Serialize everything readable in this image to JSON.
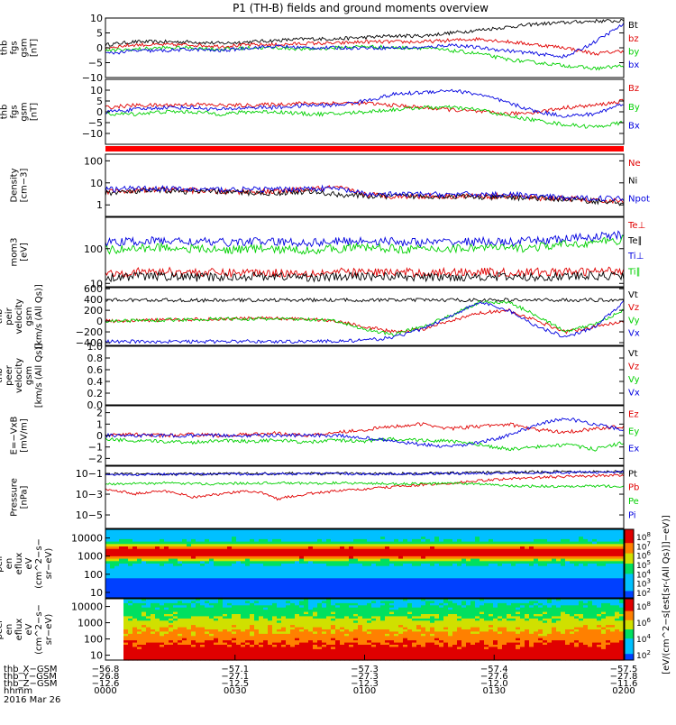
{
  "title": "P1 (TH-B) fields and ground moments overview",
  "colors": {
    "black": "#000000",
    "red": "#e00000",
    "green": "#00d000",
    "blue": "#0000e0",
    "bar_red": "#ff0000"
  },
  "chart_data": [
    {
      "type": "line",
      "panel": "fgs_gsm",
      "ylabel": [
        "thb",
        "fgs",
        "gsm",
        "[nT]"
      ],
      "ylim": [
        -10,
        10
      ],
      "ticks": [
        "10",
        "5",
        "0",
        "−5",
        "−10"
      ],
      "legend": [
        "Bt",
        "bz",
        "by",
        "bx"
      ],
      "series": [
        {
          "name": "Bt",
          "color": "black",
          "values": [
            1,
            2,
            2,
            2,
            1.5,
            2,
            2.5,
            3,
            3,
            3.5,
            4,
            4,
            5,
            6,
            7,
            8,
            8.5,
            9,
            9
          ]
        },
        {
          "name": "bz",
          "color": "red",
          "values": [
            0,
            1,
            1,
            1,
            0.5,
            1,
            1,
            1.5,
            1.5,
            2,
            2,
            2,
            2.5,
            3,
            2,
            1,
            0,
            -2,
            -1
          ]
        },
        {
          "name": "by",
          "color": "green",
          "values": [
            -1,
            -0.5,
            0,
            0,
            -0.5,
            0,
            0,
            -0.5,
            0,
            0.5,
            0,
            0,
            -1,
            -2,
            -4,
            -5,
            -6,
            -7,
            -6
          ]
        },
        {
          "name": "bx",
          "color": "blue",
          "values": [
            -2,
            -1,
            -1,
            -0.5,
            -1,
            0,
            0.5,
            0,
            0,
            0,
            0,
            0,
            1,
            0,
            -1,
            -2,
            -3,
            2,
            8
          ]
        }
      ]
    },
    {
      "type": "line",
      "panel": "fgs_gsm_B",
      "ylabel": [
        "thb",
        "fgs",
        "gsm",
        "[nT]"
      ],
      "ylim": [
        -15,
        15
      ],
      "ticks": [
        "10",
        "5",
        "0",
        "−5",
        "−10"
      ],
      "legend": [
        "Bz",
        "By",
        "Bx"
      ],
      "series": [
        {
          "name": "Bz",
          "color": "red",
          "values": [
            2,
            3,
            3,
            3.5,
            3,
            3,
            3.5,
            4,
            4,
            4,
            3,
            2,
            1,
            0,
            -1,
            0,
            2,
            3,
            5
          ]
        },
        {
          "name": "By",
          "color": "green",
          "values": [
            -1,
            -1,
            0,
            0,
            -1,
            0,
            0,
            -1,
            -1,
            0,
            1,
            2,
            2,
            1,
            -2,
            -4,
            -6,
            -7,
            -5
          ]
        },
        {
          "name": "Bx",
          "color": "blue",
          "values": [
            0,
            1,
            2,
            2,
            1,
            2,
            2,
            3,
            3,
            5,
            8,
            9,
            10,
            8,
            4,
            0,
            -2,
            -1,
            4
          ]
        }
      ]
    },
    {
      "type": "line",
      "panel": "density",
      "log": true,
      "ylabel": [
        "Density",
        "[cm−3]"
      ],
      "ylim": [
        0.3,
        200
      ],
      "ticks": [
        "100",
        "10",
        "1"
      ],
      "legend": [
        "Ne",
        "Ni",
        "Npot"
      ],
      "series": [
        {
          "name": "Ne",
          "color": "red",
          "values": [
            4,
            4.5,
            5,
            4.5,
            4,
            4,
            4,
            5,
            6,
            3,
            2.5,
            2.5,
            2.5,
            2.5,
            2.5,
            2,
            2,
            1.5,
            1.5
          ]
        },
        {
          "name": "Ni",
          "color": "black",
          "values": [
            3.5,
            4,
            4.5,
            4,
            4,
            3.5,
            3.5,
            4,
            3,
            2.5,
            2.5,
            2.5,
            2.5,
            2.2,
            2.2,
            2,
            1.8,
            1.5,
            1.2
          ]
        },
        {
          "name": "Npot",
          "color": "blue",
          "values": [
            5,
            5.5,
            5.5,
            5,
            5,
            5,
            5,
            5.5,
            5.5,
            3,
            3,
            3,
            3,
            3,
            3,
            2.5,
            2,
            2,
            2
          ]
        }
      ]
    },
    {
      "type": "line",
      "panel": "temperature",
      "log": true,
      "ylabel": [
        "mom3",
        "[eV]"
      ],
      "ylim": [
        8,
        800
      ],
      "ticks": [
        "100",
        "10"
      ],
      "legend": [
        "Te⊥",
        "Te∥",
        "Ti⊥",
        "Ti∥"
      ],
      "series": [
        {
          "name": "Te⊥",
          "color": "red",
          "values": [
            20,
            21,
            22,
            21,
            20,
            21,
            20,
            20,
            21,
            21,
            21,
            20,
            21,
            22,
            20,
            21,
            21,
            22,
            24
          ]
        },
        {
          "name": "Te∥",
          "color": "black",
          "values": [
            15,
            16,
            16,
            15,
            15,
            16,
            16,
            15,
            15,
            16,
            16,
            15,
            15,
            16,
            15,
            15,
            16,
            16,
            17
          ]
        },
        {
          "name": "Ti⊥",
          "color": "blue",
          "values": [
            150,
            160,
            170,
            160,
            150,
            160,
            155,
            150,
            160,
            170,
            160,
            150,
            155,
            160,
            150,
            170,
            190,
            220,
            250
          ]
        },
        {
          "name": "Ti∥",
          "color": "green",
          "values": [
            90,
            100,
            110,
            100,
            90,
            100,
            95,
            90,
            100,
            110,
            100,
            95,
            100,
            110,
            100,
            110,
            130,
            150,
            180
          ]
        }
      ]
    },
    {
      "type": "line",
      "panel": "ion_velocity",
      "ylabel": [
        "thb",
        "peir",
        "velocity",
        "gsm",
        "[km/s (All Qs)]"
      ],
      "ylim": [
        -450,
        620
      ],
      "ticks": [
        "600",
        "400",
        "200",
        "0",
        "−200",
        "−400"
      ],
      "legend": [
        "Vt",
        "Vz",
        "Vy",
        "Vx"
      ],
      "series": [
        {
          "name": "Vt",
          "color": "black",
          "values": [
            390,
            390,
            390,
            385,
            385,
            390,
            390,
            390,
            390,
            390,
            390,
            390,
            390,
            390,
            390,
            390,
            390,
            390,
            395
          ]
        },
        {
          "name": "Vz",
          "color": "red",
          "values": [
            0,
            10,
            20,
            30,
            40,
            50,
            50,
            40,
            0,
            -100,
            -200,
            -150,
            0,
            150,
            200,
            0,
            -200,
            -100,
            0
          ]
        },
        {
          "name": "Vy",
          "color": "green",
          "values": [
            0,
            10,
            20,
            30,
            40,
            40,
            40,
            30,
            0,
            -150,
            -250,
            -100,
            100,
            350,
            350,
            100,
            -200,
            -50,
            200
          ]
        },
        {
          "name": "Vx",
          "color": "blue",
          "values": [
            -380,
            -380,
            -380,
            -380,
            -380,
            -375,
            -380,
            -375,
            -370,
            -360,
            -300,
            -150,
            100,
            350,
            200,
            -100,
            -300,
            -100,
            350
          ]
        }
      ]
    },
    {
      "type": "line",
      "panel": "electron_velocity",
      "ylabel": [
        "thb",
        "peer",
        "velocity",
        "gsm",
        "[km/s (All Qs)]"
      ],
      "ylim": [
        0,
        1
      ],
      "ticks": [
        "1.0",
        "0.8",
        "0.6",
        "0.4",
        "0.2",
        "0.0"
      ],
      "legend": [
        "Vt",
        "Vz",
        "Vy",
        "Vx"
      ],
      "series": []
    },
    {
      "type": "line",
      "panel": "efield",
      "ylabel": [
        "E=−VxB",
        "[mV/m]"
      ],
      "ylim": [
        -2.6,
        2.6
      ],
      "ticks": [
        "2",
        "1",
        "0",
        "−1",
        "−2"
      ],
      "legend": [
        "Ez",
        "Ey",
        "Ex"
      ],
      "series": [
        {
          "name": "Ez",
          "color": "red",
          "values": [
            0,
            0.1,
            0,
            0.1,
            0,
            0.1,
            0.2,
            0,
            0.3,
            0.5,
            0.8,
            1,
            0.6,
            0.8,
            1,
            0.5,
            0.3,
            0.6,
            0.8
          ]
        },
        {
          "name": "Ey",
          "color": "green",
          "values": [
            -0.3,
            -0.5,
            -0.5,
            -0.6,
            -0.4,
            -0.5,
            -0.4,
            -0.6,
            -0.4,
            -0.5,
            -0.3,
            -0.4,
            -0.5,
            -0.8,
            -1.2,
            -1,
            -0.8,
            -1.2,
            -0.6
          ]
        },
        {
          "name": "Ex",
          "color": "blue",
          "values": [
            0,
            0,
            0,
            0,
            0,
            0,
            0,
            0,
            0,
            -0.2,
            -0.5,
            -0.8,
            -1,
            -0.6,
            0,
            1,
            1.5,
            1,
            0.5
          ]
        }
      ]
    },
    {
      "type": "line",
      "panel": "pressure",
      "log": true,
      "ylabel": [
        "Pressure",
        "[nPa]"
      ],
      "ylim": [
        5e-07,
        0.5
      ],
      "ticks": [
        "10−1",
        "10−3",
        "10−5"
      ],
      "legend": [
        "Pt",
        "Pb",
        "Pe",
        "Pi"
      ],
      "series": [
        {
          "name": "Pt",
          "color": "black",
          "values": [
            0.09,
            0.09,
            0.09,
            0.09,
            0.09,
            0.1,
            0.1,
            0.1,
            0.1,
            0.1,
            0.1,
            0.1,
            0.11,
            0.12,
            0.13,
            0.14,
            0.15,
            0.15,
            0.16
          ]
        },
        {
          "name": "Pb",
          "color": "red",
          "values": [
            0.003,
            0.001,
            0.002,
            0.0005,
            0.001,
            0.002,
            0.0003,
            0.001,
            0.002,
            0.003,
            0.005,
            0.008,
            0.01,
            0.02,
            0.03,
            0.04,
            0.05,
            0.06,
            0.07
          ]
        },
        {
          "name": "Pe",
          "color": "green",
          "values": [
            0.01,
            0.01,
            0.012,
            0.01,
            0.01,
            0.012,
            0.012,
            0.011,
            0.012,
            0.011,
            0.01,
            0.01,
            0.011,
            0.01,
            0.006,
            0.006,
            0.005,
            0.006,
            0.006
          ]
        },
        {
          "name": "Pi",
          "color": "blue",
          "values": [
            0.08,
            0.08,
            0.08,
            0.08,
            0.08,
            0.09,
            0.09,
            0.09,
            0.09,
            0.09,
            0.09,
            0.09,
            0.1,
            0.1,
            0.11,
            0.12,
            0.12,
            0.13,
            0.14
          ]
        }
      ]
    },
    {
      "type": "heatmap",
      "panel": "ion_spectrogram",
      "log": true,
      "ylabel": [
        "thb",
        "peir",
        "en",
        "eflux",
        "eV",
        "(cm^2−s−",
        "sr−eV)"
      ],
      "ylim": [
        5,
        30000
      ],
      "ticks": [
        "10000",
        "1000",
        "100",
        "10"
      ],
      "colorbar_ticks": [
        "10^8",
        "10^7",
        "10^6",
        "10^5",
        "10^4",
        "10^3",
        "10^2"
      ]
    },
    {
      "type": "heatmap",
      "panel": "electron_spectrogram",
      "log": true,
      "ylabel": [
        "thb",
        "peer",
        "en",
        "eflux",
        "eV",
        "(cm^2−s−",
        "sr−eV)"
      ],
      "ylim": [
        5,
        30000
      ],
      "ticks": [
        "10000",
        "1000",
        "100",
        "10"
      ],
      "colorbar_ticks": [
        "10^8",
        "10^6",
        "10^4",
        "10^2"
      ],
      "colorbar_label": "[eV/(cm^2−s[est[sr-(All Qs)]]−eV)]"
    }
  ],
  "xaxis": {
    "rows": [
      {
        "label": "thb_X−GSM",
        "values": [
          "−56.8",
          "−57.1",
          "−57.3",
          "−57.4",
          "−57.5"
        ]
      },
      {
        "label": "thb_Y−GSM",
        "values": [
          "−26.8",
          "−27.1",
          "−27.3",
          "−27.6",
          "−27.8"
        ]
      },
      {
        "label": "thb_Z−GSM",
        "values": [
          "−12.6",
          "−12.5",
          "−12.3",
          "−12.0",
          "−11.6"
        ]
      },
      {
        "label": "hhmm",
        "values": [
          "0000",
          "0030",
          "0100",
          "0130",
          "0200"
        ]
      }
    ],
    "date": "2016 Mar 26"
  }
}
